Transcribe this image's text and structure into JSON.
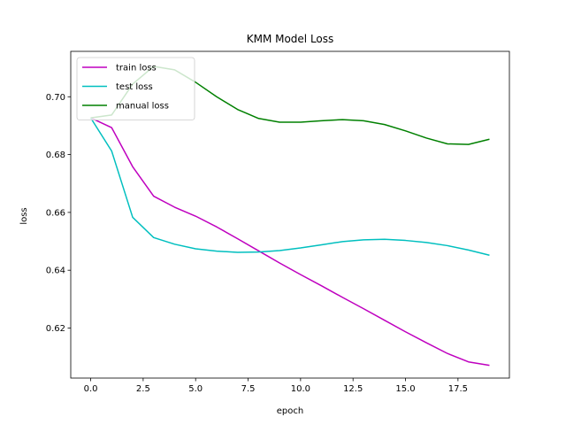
{
  "chart_data": {
    "type": "line",
    "title": "KMM Model Loss",
    "xlabel": "epoch",
    "ylabel": "loss",
    "xlim": [
      -0.95,
      19.95
    ],
    "ylim": [
      0.6027,
      0.7157
    ],
    "xticks": [
      0.0,
      2.5,
      5.0,
      7.5,
      10.0,
      12.5,
      15.0,
      17.5
    ],
    "xtick_labels": [
      "0.0",
      "2.5",
      "5.0",
      "7.5",
      "10.0",
      "12.5",
      "15.0",
      "17.5"
    ],
    "yticks": [
      0.62,
      0.64,
      0.66,
      0.68,
      0.7
    ],
    "ytick_labels": [
      "0.62",
      "0.64",
      "0.66",
      "0.68",
      "0.70"
    ],
    "grid": false,
    "legend_position": "top-left",
    "x": [
      0,
      1,
      2,
      3,
      4,
      5,
      6,
      7,
      8,
      9,
      10,
      11,
      12,
      13,
      14,
      15,
      16,
      17,
      18,
      19
    ],
    "series": [
      {
        "name": "train loss",
        "color": "#bf00bf",
        "values": [
          0.6927,
          0.6893,
          0.6758,
          0.6656,
          0.6618,
          0.6587,
          0.655,
          0.6509,
          0.6467,
          0.6425,
          0.6385,
          0.6346,
          0.6306,
          0.6267,
          0.6227,
          0.6187,
          0.6149,
          0.6112,
          0.6083,
          0.6071
        ]
      },
      {
        "name": "test loss",
        "color": "#00bfbf",
        "values": [
          0.6927,
          0.6812,
          0.6583,
          0.6513,
          0.649,
          0.6474,
          0.6466,
          0.6462,
          0.6463,
          0.6468,
          0.6477,
          0.6488,
          0.6499,
          0.6505,
          0.6507,
          0.6503,
          0.6496,
          0.6485,
          0.647,
          0.6452
        ]
      },
      {
        "name": "manual loss",
        "color": "#008000",
        "values": [
          0.6927,
          0.6937,
          0.7044,
          0.7105,
          0.7093,
          0.705,
          0.7,
          0.6956,
          0.6925,
          0.6912,
          0.6912,
          0.6917,
          0.6921,
          0.6917,
          0.6904,
          0.6882,
          0.6857,
          0.6837,
          0.6835,
          0.6853
        ]
      }
    ]
  }
}
